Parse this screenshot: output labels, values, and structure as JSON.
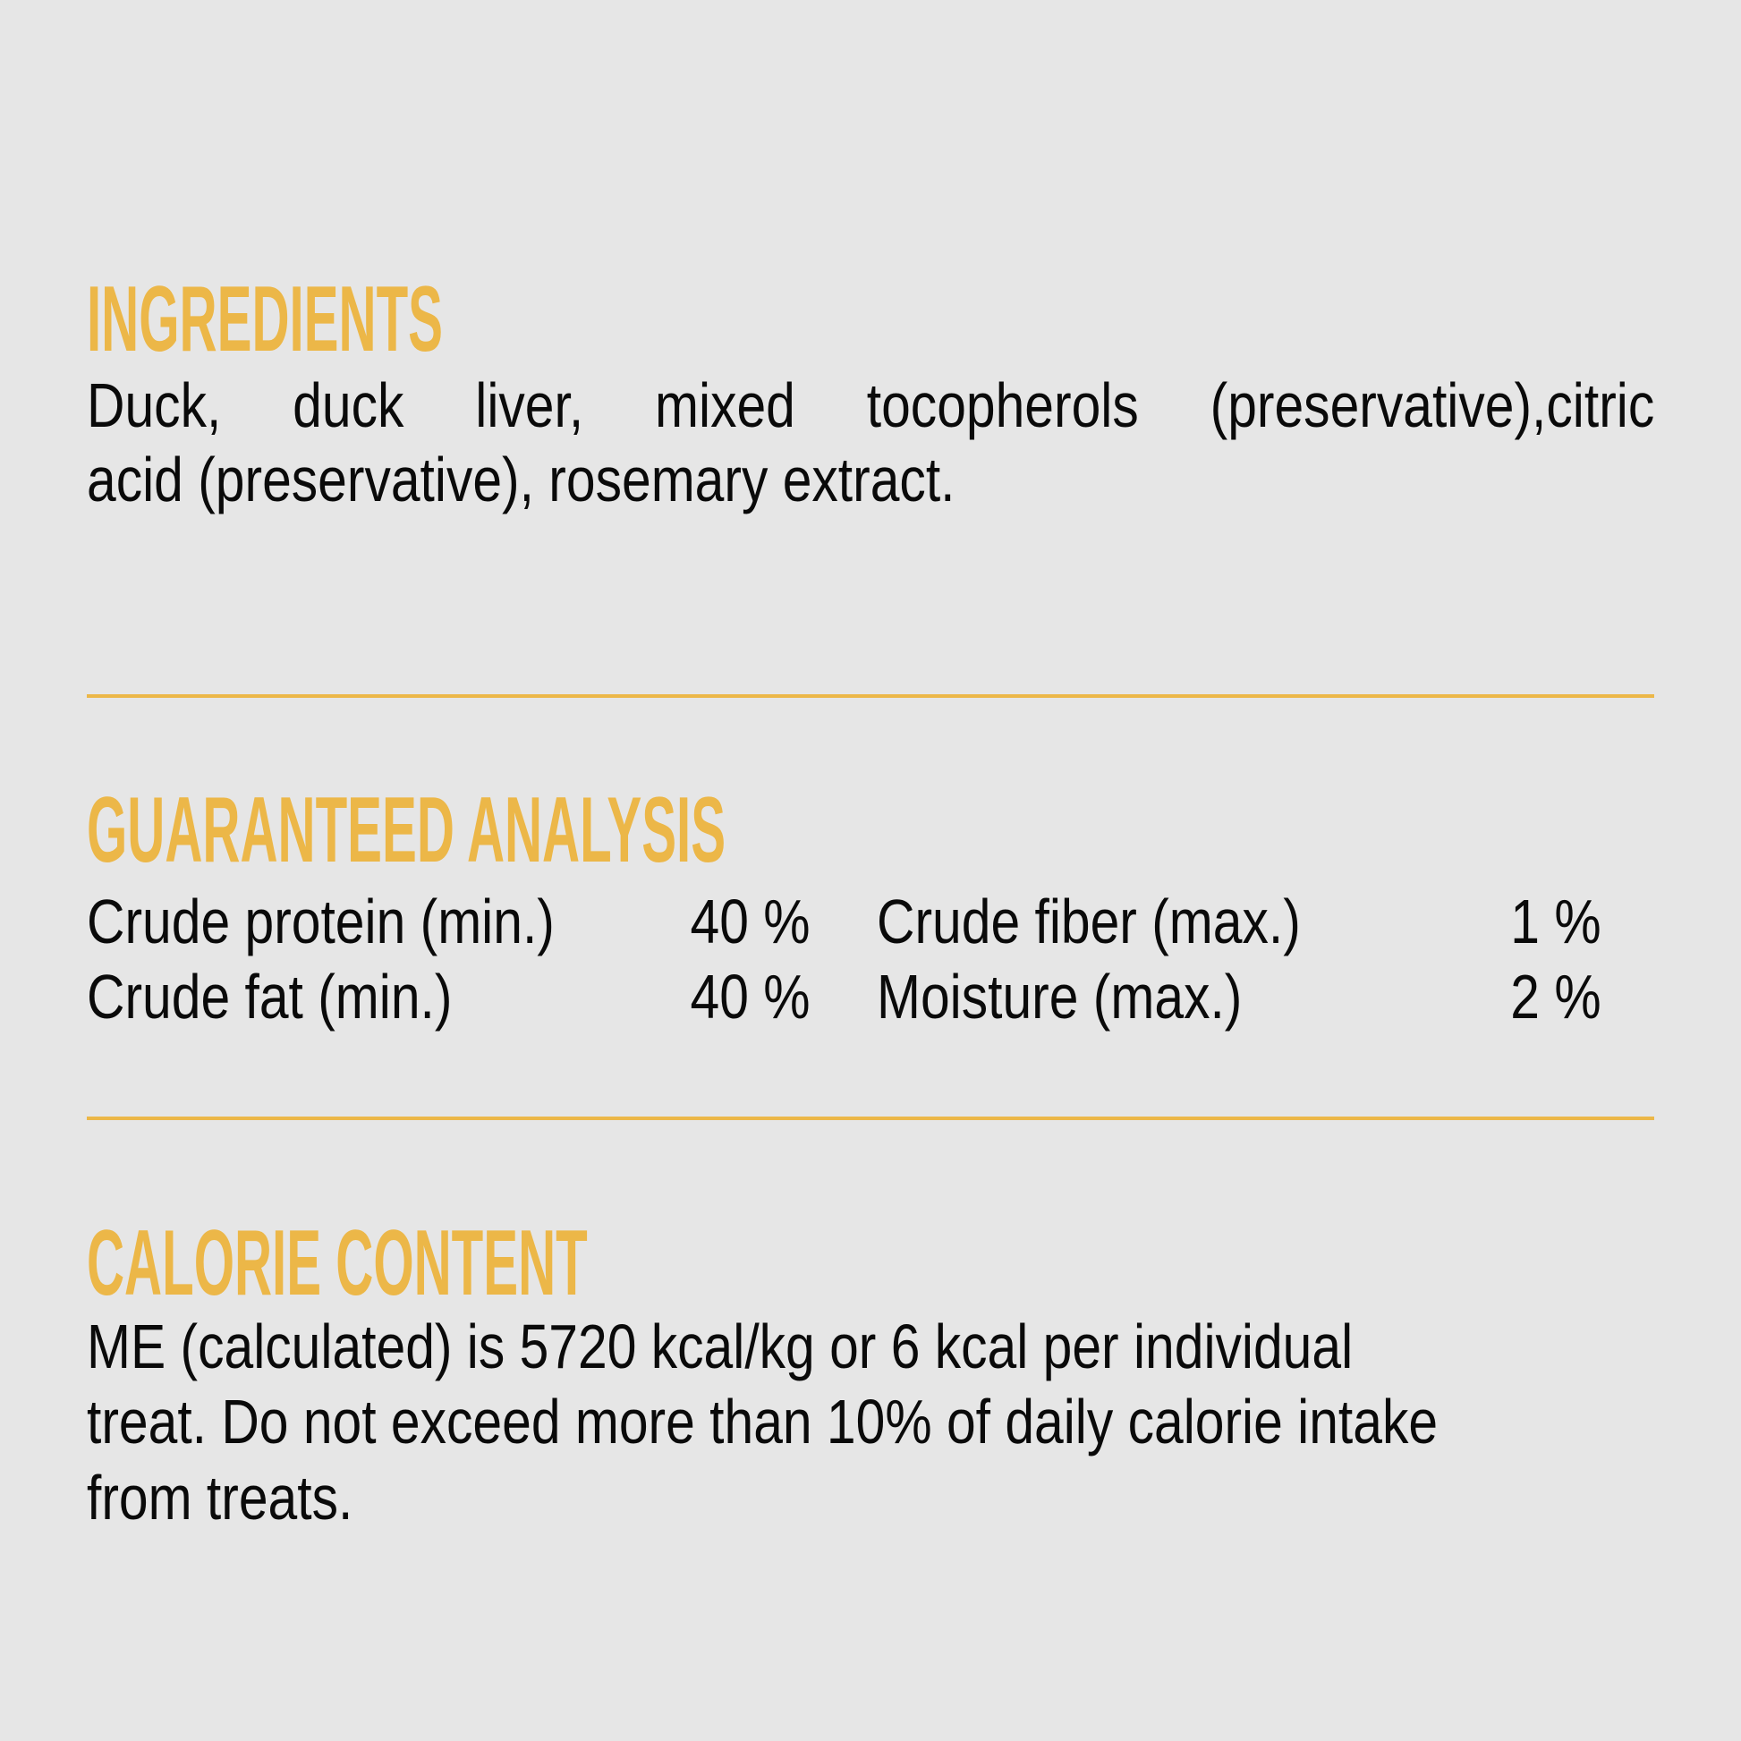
{
  "colors": {
    "accent": "#ecb748",
    "background": "#e6e6e6",
    "text": "#0a0a0a"
  },
  "ingredients": {
    "heading": "INGREDIENTS",
    "lines": [
      "Duck, duck liver, mixed tocopherols (preservative),citric",
      "acid (preservative), rosemary extract."
    ]
  },
  "analysis": {
    "heading": "GUARANTEED ANALYSIS",
    "rows": [
      {
        "label": "Crude protein (min.)",
        "value": "40 %",
        "label2": "Crude fiber (max.)",
        "value2": "1 %"
      },
      {
        "label": "Crude fat (min.)",
        "value": "40 %",
        "label2": "Moisture (max.)",
        "value2": "2 %"
      }
    ]
  },
  "calorie": {
    "heading": "CALORIE CONTENT",
    "lines": [
      "ME (calculated) is 5720 kcal/kg or 6 kcal per individual",
      "treat. Do not exceed more than 10% of daily calorie intake",
      "from treats."
    ]
  }
}
